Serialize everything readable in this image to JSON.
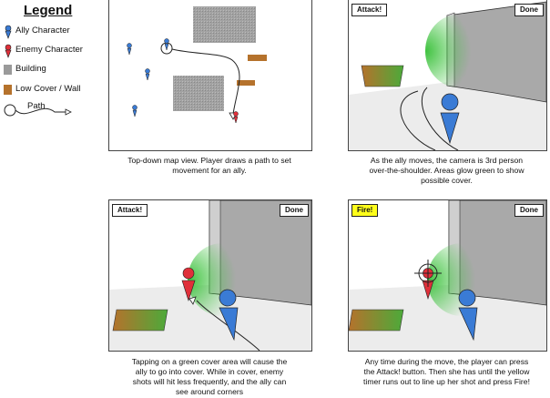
{
  "legend": {
    "title": "Legend",
    "items": [
      {
        "label": "Ally Character",
        "icon": "ally-character-icon",
        "color": "#3a7bd5"
      },
      {
        "label": "Enemy Character",
        "icon": "enemy-character-icon",
        "color": "#e0303a"
      },
      {
        "label": "Building",
        "icon": "building-icon",
        "color": "#9a9a9a"
      },
      {
        "label": "Low Cover / Wall",
        "icon": "low-cover-icon",
        "color": "#b5722c"
      },
      {
        "label": "Path",
        "icon": "path-icon"
      }
    ]
  },
  "panels": {
    "map": {
      "caption_line1": "Top-down map view. Player draws a path to set",
      "caption_line2": "movement for an ally."
    },
    "move": {
      "attack_label": "Attack!",
      "done_label": "Done",
      "caption_line1": "As the ally moves, the camera is 3rd person",
      "caption_line2": "over-the-shoulder. Areas glow green to show",
      "caption_line3": "possible cover."
    },
    "cover": {
      "attack_label": "Attack!",
      "done_label": "Done",
      "caption_line1": "Tapping on a green cover area will cause the",
      "caption_line2": "ally to go into cover. While in cover, enemy",
      "caption_line3": "shots will hit less frequently, and the ally can",
      "caption_line4": "see around corners"
    },
    "fire": {
      "fire_label": "Fire!",
      "done_label": "Done",
      "caption_line1": "Any time during the move, the player can press",
      "caption_line2": "the Attack! button. Then she has until the yellow",
      "caption_line3": "timer runs out to line up her shot and press Fire!"
    }
  },
  "colors": {
    "ally": "#3a7bd5",
    "enemy": "#e0303a",
    "building": "#9a9a9a",
    "cover_brown": "#b5722c",
    "cover_green": "#4caa3a",
    "glow_green": "#3ec23e",
    "fire_yellow": "#ffff1a"
  }
}
